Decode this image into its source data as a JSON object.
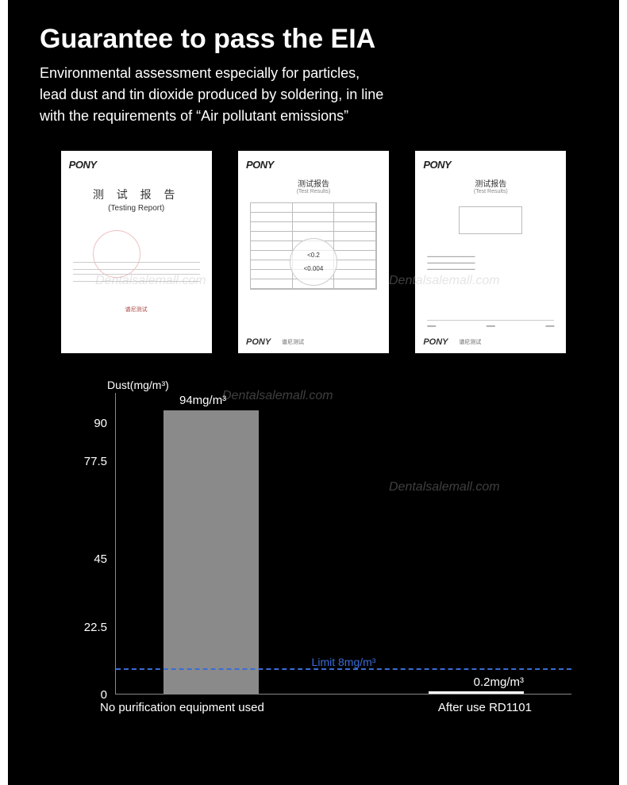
{
  "heading": "Guarantee to pass the EIA",
  "subheading": "Environmental assessment especially for particles,\nlead dust and tin dioxide produced by soldering, in line\nwith the requirements of “Air pollutant emissions”",
  "certs": {
    "brand": "PONY",
    "cert1": {
      "title_zh": "测 试 报 告",
      "title_en": "(Testing  Report)"
    },
    "cert2": {
      "title_zh": "测试报告",
      "title_en": "(Test Results)",
      "val1": "<0.2",
      "val2": "<0.004"
    },
    "cert3": {
      "title_zh": "测试报告",
      "title_en": "(Test Results)"
    },
    "footer": "谱尼测试"
  },
  "chart": {
    "type": "bar",
    "y_axis_title": "Dust(mg/m³)",
    "y_ticks": [
      0,
      22.5,
      45,
      77.5,
      90
    ],
    "y_max": 100,
    "limit_label": "Limit 8mg/m³",
    "limit_value": 8,
    "bars": [
      {
        "label": "94mg/m³",
        "value": 94,
        "x_label": "No purification equipment used",
        "color": "#8a8a8a"
      },
      {
        "label": "0.2mg/m³",
        "value": 0.2,
        "x_label": "After use RD1101",
        "color": "#ffffff"
      }
    ],
    "axis_color": "#888888",
    "text_color": "#ffffff",
    "limit_color": "#3b6bd6",
    "background": "#000000"
  },
  "watermark": "Dentalsalemall.com"
}
